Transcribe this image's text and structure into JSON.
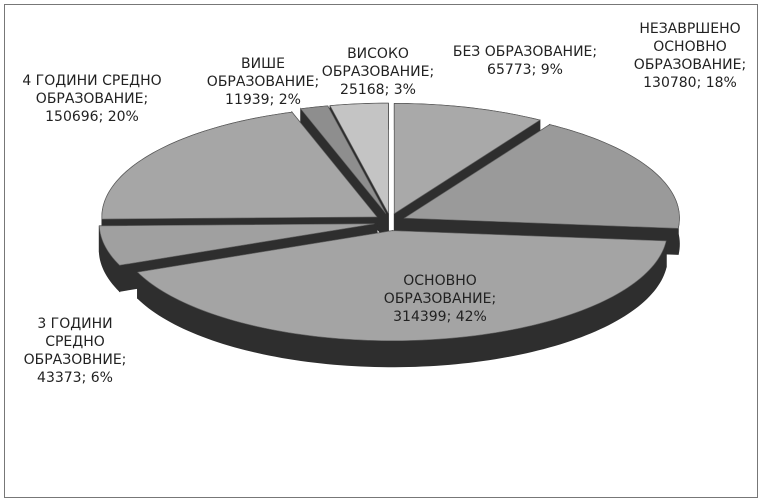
{
  "chart_data": {
    "type": "pie",
    "values": [
      65773,
      130780,
      314399,
      43373,
      150696,
      11939,
      25168
    ],
    "value_labels": [
      "БЕЗ ОБРАЗОВАНИЕ; 65773; 9%",
      "НЕЗАВРШЕНО ОСНОВНО ОБРАЗОВАНИЕ; 130780; 18%",
      "ОСНОВНО ОБРАЗОВАНИЕ; 314399; 42%",
      "3 ГОДИНИ СРЕДНО ОБРАЗОВНИЕ; 43373; 6%",
      "4 ГОДИНИ СРЕДНО ОБРАЗОВАНИЕ; 150696; 20%",
      "ВИШЕ ОБРАЗОВАНИЕ; 11939; 2%",
      "ВИСОКО ОБРАЗОВАНИЕ; 25168; 3%"
    ],
    "colors": [
      "#a9a9a9",
      "#9a9a9a",
      "#a4a4a4",
      "#a0a0a0",
      "#a6a6a6",
      "#8e8e8e",
      "#c4c4c4"
    ],
    "side_color": "#2e2e2e"
  }
}
